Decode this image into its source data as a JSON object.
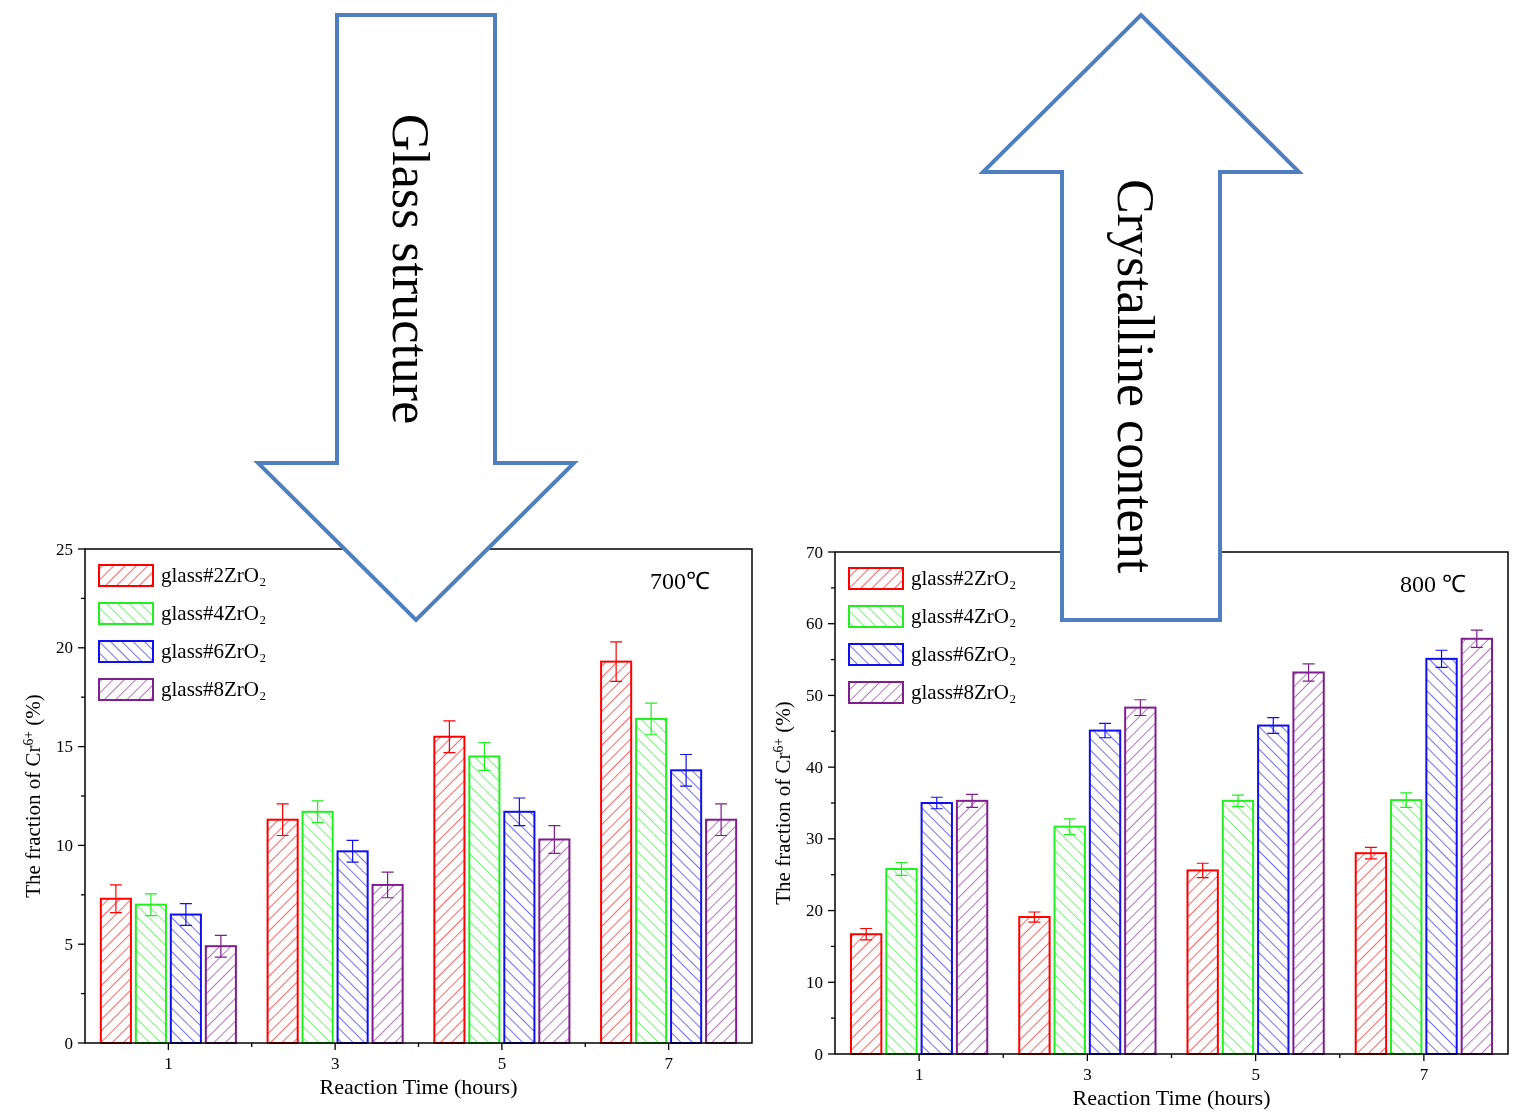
{
  "chart_data": [
    {
      "type": "bar",
      "title": "700℃",
      "xlabel": "Reaction Time (hours)",
      "ylabel": "The fraction of Cr$^{6+}$ (%)",
      "annotations": [
        "Glass structure"
      ],
      "categories": [
        "1",
        "3",
        "5",
        "7"
      ],
      "series": [
        {
          "name": "glass#2ZrO₂",
          "color": "#ff0000",
          "values": [
            7.3,
            11.3,
            15.5,
            19.3
          ],
          "errors": [
            0.7,
            0.8,
            0.8,
            1.0
          ]
        },
        {
          "name": "glass#4ZrO₂",
          "color": "#22ee22",
          "values": [
            7.0,
            11.7,
            14.5,
            16.4
          ],
          "errors": [
            0.55,
            0.55,
            0.7,
            0.8
          ]
        },
        {
          "name": "glass#6ZrO₂",
          "color": "#1010ee",
          "values": [
            6.5,
            9.7,
            11.7,
            13.8
          ],
          "errors": [
            0.55,
            0.55,
            0.7,
            0.8
          ]
        },
        {
          "name": "glass#8ZrO₂",
          "color": "#7f1f8f",
          "values": [
            4.9,
            8.0,
            10.3,
            11.3
          ],
          "errors": [
            0.55,
            0.65,
            0.7,
            0.8
          ]
        }
      ],
      "ylim": [
        0,
        25
      ],
      "yticks": [
        0,
        {
          "value": 2.5,
          "label": null
        },
        5,
        {
          "value": 7.5,
          "label": null
        },
        10,
        {
          "value": 12.5,
          "label": null
        },
        15,
        {
          "value": 17.5,
          "label": null
        },
        20,
        {
          "value": 22.5,
          "label": null
        },
        25
      ],
      "legend": "top left",
      "grid": false
    },
    {
      "type": "bar",
      "title": "800 ℃",
      "xlabel": "Reaction Time (hours)",
      "ylabel": "The fraction of Cr$^{6+}$ (%)",
      "annotations": [
        "Crystalline content"
      ],
      "categories": [
        "1",
        "3",
        "5",
        "7"
      ],
      "series": [
        {
          "name": "glass#2ZrO₂",
          "color": "#ff0000",
          "values": [
            16.7,
            19.1,
            25.6,
            28.0
          ],
          "errors": [
            0.8,
            0.7,
            1.0,
            0.8
          ]
        },
        {
          "name": "glass#4ZrO₂",
          "color": "#22ee22",
          "values": [
            25.8,
            31.7,
            35.3,
            35.4
          ],
          "errors": [
            0.9,
            1.1,
            0.8,
            1.0
          ]
        },
        {
          "name": "glass#6ZrO₂",
          "color": "#1010ee",
          "values": [
            35.0,
            45.1,
            45.8,
            55.1
          ],
          "errors": [
            0.8,
            1.0,
            1.1,
            1.2
          ]
        },
        {
          "name": "glass#8ZrO₂",
          "color": "#7f1f8f",
          "values": [
            35.3,
            48.3,
            53.2,
            57.9
          ],
          "errors": [
            0.9,
            1.1,
            1.2,
            1.2
          ]
        }
      ],
      "ylim": [
        0,
        70
      ],
      "yticks": [
        0,
        {
          "value": 5,
          "label": null
        },
        10,
        {
          "value": 15,
          "label": null
        },
        20,
        {
          "value": 25,
          "label": null
        },
        30,
        {
          "value": 35,
          "label": null
        },
        40,
        {
          "value": 45,
          "label": null
        },
        50,
        {
          "value": 55,
          "label": null
        },
        60,
        {
          "value": 65,
          "label": null
        },
        70
      ],
      "legend": "top left",
      "grid": false
    }
  ]
}
